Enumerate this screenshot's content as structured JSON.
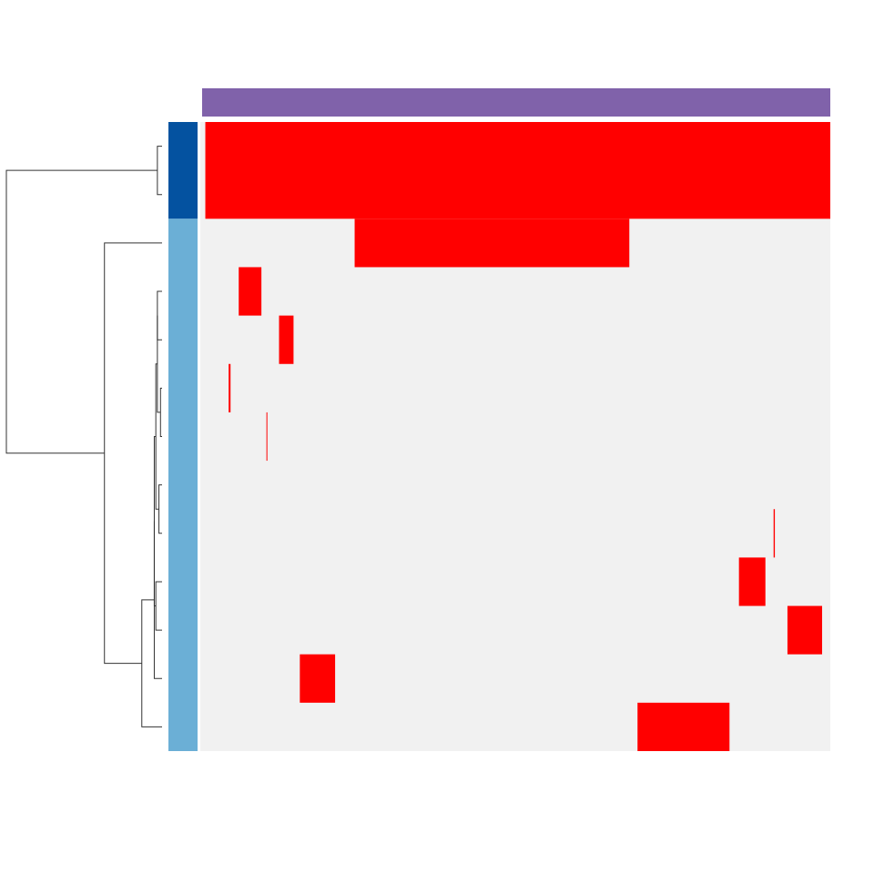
{
  "chart_data": {
    "type": "heatmap",
    "title": "",
    "xlabel": "",
    "ylabel": "",
    "column_annotation": {
      "groups": 1,
      "color": "#8062aa"
    },
    "row_annotation": {
      "groups": [
        {
          "rows": [
            0,
            1
          ],
          "color": "#0452a0"
        },
        {
          "rows": [
            2,
            3,
            4,
            5,
            6,
            7,
            8,
            9,
            10,
            11,
            12
          ],
          "color": "#6bafd6"
        }
      ]
    },
    "colors": {
      "background": "#f1f1f1",
      "high": "#ff0000",
      "dendrogram": "#333333"
    },
    "rows": 13,
    "columns_span": [
      0,
      100
    ],
    "blocks": [
      {
        "row_start": 0,
        "row_end": 2,
        "col_start": 0.8,
        "col_end": 100
      },
      {
        "row_start": 2,
        "row_end": 3,
        "col_start": 24.5,
        "col_end": 68.1
      },
      {
        "row_start": 3,
        "row_end": 4,
        "col_start": 6.1,
        "col_end": 9.7
      },
      {
        "row_start": 4,
        "row_end": 5,
        "col_start": 12.5,
        "col_end": 14.8
      },
      {
        "row_start": 5,
        "row_end": 6,
        "col_start": 4.5,
        "col_end": 4.8
      },
      {
        "row_start": 6,
        "row_end": 7,
        "col_start": 10.5,
        "col_end": 10.6
      },
      {
        "row_start": 8,
        "row_end": 9,
        "col_start": 91.0,
        "col_end": 91.2
      },
      {
        "row_start": 9,
        "row_end": 10,
        "col_start": 85.5,
        "col_end": 89.7
      },
      {
        "row_start": 10,
        "row_end": 11,
        "col_start": 93.2,
        "col_end": 98.7
      },
      {
        "row_start": 11,
        "row_end": 12,
        "col_start": 15.8,
        "col_end": 21.4
      },
      {
        "row_start": 12,
        "row_end": 13,
        "col_start": 69.4,
        "col_end": 84.0
      }
    ],
    "dendrogram": {
      "leaf_order": [
        0,
        1,
        2,
        3,
        4,
        5,
        6,
        7,
        8,
        9,
        10,
        11,
        12
      ],
      "merges": [
        {
          "id": "a",
          "left": 0,
          "right": 1,
          "height": 0.03
        },
        {
          "id": "b",
          "left": 3,
          "right": 4,
          "height": 0.03
        },
        {
          "id": "c",
          "left": 5,
          "right": 6,
          "height": 0.01
        },
        {
          "id": "d",
          "left": "b",
          "right": "c",
          "height": 0.03
        },
        {
          "id": "e",
          "left": 7,
          "right": 8,
          "height": 0.02
        },
        {
          "id": "f",
          "left": "d",
          "right": "e",
          "height": 0.04
        },
        {
          "id": "g",
          "left": 9,
          "right": 10,
          "height": 0.04
        },
        {
          "id": "h",
          "left": "f",
          "right": "g",
          "height": 0.05
        },
        {
          "id": "i",
          "left": "h",
          "right": 11,
          "height": 0.05
        },
        {
          "id": "j",
          "left": "i",
          "right": 12,
          "height": 0.13
        },
        {
          "id": "k",
          "left": 2,
          "right": "j",
          "height": 0.37
        },
        {
          "id": "l",
          "left": "a",
          "right": "k",
          "height": 1.0
        }
      ]
    }
  }
}
